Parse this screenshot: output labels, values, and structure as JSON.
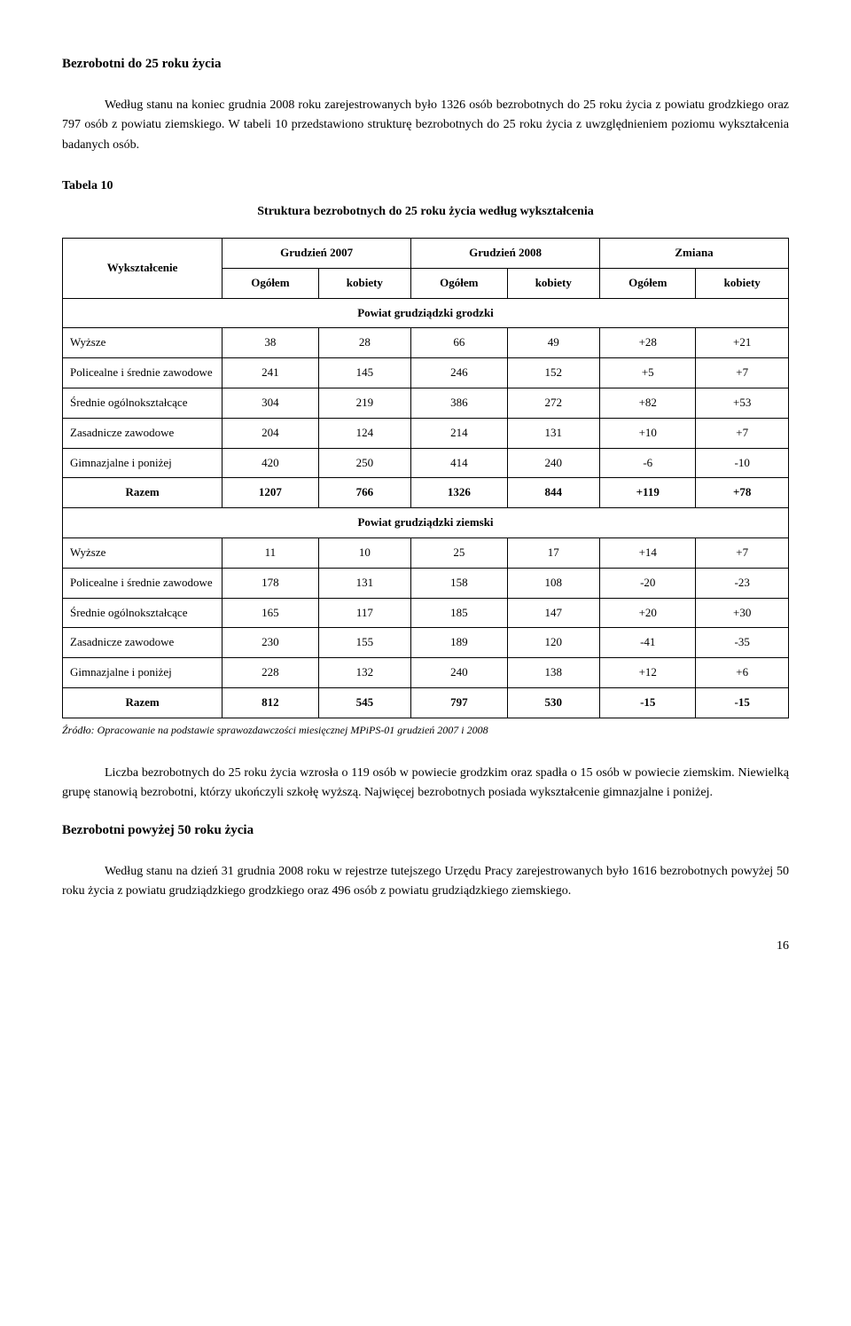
{
  "h1": "Bezrobotni do 25 roku życia",
  "p1": "Według stanu na koniec grudnia 2008 roku zarejestrowanych było 1326 osób bezrobotnych do 25 roku życia z powiatu grodzkiego oraz 797 osób z powiatu ziemskiego. W tabeli 10 przedstawiono strukturę bezrobotnych do 25 roku życia z uwzględnieniem poziomu wykształcenia badanych osób.",
  "table_label": "Tabela 10",
  "table_title": "Struktura bezrobotnych do 25 roku życia według wykształcenia",
  "col_wyk": "Wykształcenie",
  "col_g07": "Grudzień 2007",
  "col_g08": "Grudzień 2008",
  "col_zm": "Zmiana",
  "col_og": "Ogółem",
  "col_kob": "kobiety",
  "section1": "Powiat grudziądzki grodzki",
  "section2": "Powiat grudziądzki ziemski",
  "rows1": [
    {
      "label": "Wyższe",
      "c": [
        "38",
        "28",
        "66",
        "49",
        "+28",
        "+21"
      ]
    },
    {
      "label": "Policealne i średnie zawodowe",
      "c": [
        "241",
        "145",
        "246",
        "152",
        "+5",
        "+7"
      ]
    },
    {
      "label": "Średnie ogólnokształcące",
      "c": [
        "304",
        "219",
        "386",
        "272",
        "+82",
        "+53"
      ]
    },
    {
      "label": "Zasadnicze zawodowe",
      "c": [
        "204",
        "124",
        "214",
        "131",
        "+10",
        "+7"
      ]
    },
    {
      "label": "Gimnazjalne i poniżej",
      "c": [
        "420",
        "250",
        "414",
        "240",
        "-6",
        "-10"
      ]
    }
  ],
  "razem1": {
    "label": "Razem",
    "c": [
      "1207",
      "766",
      "1326",
      "844",
      "+119",
      "+78"
    ]
  },
  "rows2": [
    {
      "label": "Wyższe",
      "c": [
        "11",
        "10",
        "25",
        "17",
        "+14",
        "+7"
      ]
    },
    {
      "label": "Policealne i średnie zawodowe",
      "c": [
        "178",
        "131",
        "158",
        "108",
        "-20",
        "-23"
      ]
    },
    {
      "label": "Średnie ogólnokształcące",
      "c": [
        "165",
        "117",
        "185",
        "147",
        "+20",
        "+30"
      ]
    },
    {
      "label": "Zasadnicze zawodowe",
      "c": [
        "230",
        "155",
        "189",
        "120",
        "-41",
        "-35"
      ]
    },
    {
      "label": "Gimnazjalne i poniżej",
      "c": [
        "228",
        "132",
        "240",
        "138",
        "+12",
        "+6"
      ]
    }
  ],
  "razem2": {
    "label": "Razem",
    "c": [
      "812",
      "545",
      "797",
      "530",
      "-15",
      "-15"
    ]
  },
  "source": "Źródło: Opracowanie na podstawie sprawozdawczości miesięcznej  MPiPS-01 grudzień 2007 i 2008",
  "p2": "Liczba bezrobotnych do 25 roku życia wzrosła o 119 osób w powiecie grodzkim oraz spadła o 15 osób w powiecie ziemskim. Niewielką grupę stanowią bezrobotni, którzy ukończyli szkołę wyższą. Najwięcej bezrobotnych posiada wykształcenie gimnazjalne i poniżej.",
  "h2": "Bezrobotni powyżej 50 roku życia",
  "p3": "Według stanu na dzień 31 grudnia 2008 roku w rejestrze tutejszego Urzędu Pracy zarejestrowanych było 1616 bezrobotnych powyżej 50 roku życia z powiatu grudziądzkiego grodzkiego oraz 496 osób z powiatu grudziądzkiego ziemskiego.",
  "page": "16"
}
